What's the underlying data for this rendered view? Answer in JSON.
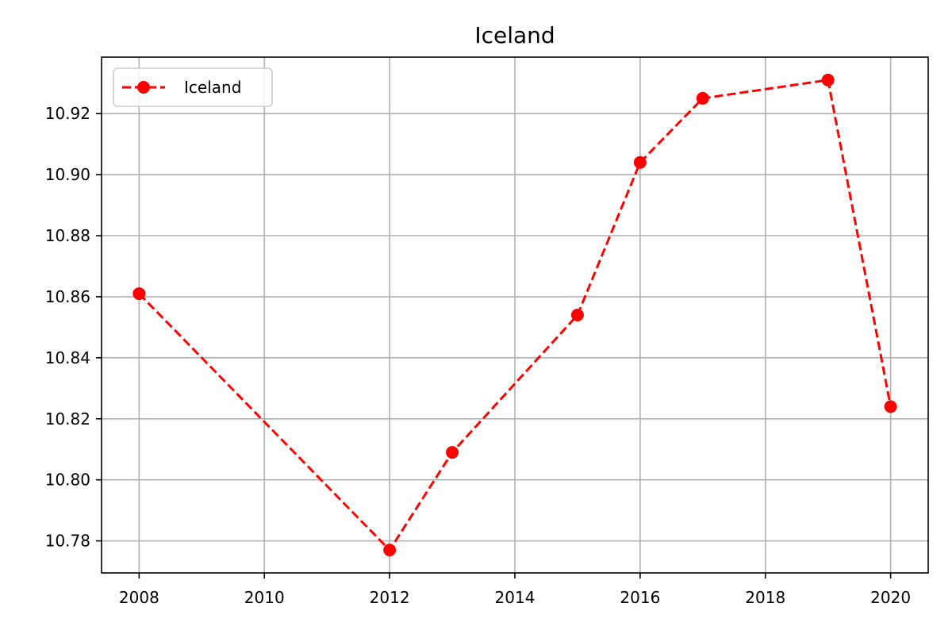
{
  "chart_data": {
    "type": "line",
    "title": "Iceland",
    "xlabel": "",
    "ylabel": "",
    "x": [
      2008,
      2012,
      2013,
      2015,
      2016,
      2017,
      2019,
      2020
    ],
    "series": [
      {
        "name": "Iceland",
        "values": [
          10.861,
          10.777,
          10.809,
          10.854,
          10.904,
          10.925,
          10.931,
          10.824
        ],
        "color": "#ff0000",
        "line_style": "dashed",
        "marker": "circle"
      }
    ],
    "xlim": [
      2007.4,
      2020.6
    ],
    "ylim": [
      10.7695,
      10.9385
    ],
    "x_ticks": [
      2008,
      2010,
      2012,
      2014,
      2016,
      2018,
      2020
    ],
    "y_ticks": [
      10.78,
      10.8,
      10.82,
      10.84,
      10.86,
      10.88,
      10.9,
      10.92
    ],
    "y_tick_labels": [
      "10.78",
      "10.80",
      "10.82",
      "10.84",
      "10.86",
      "10.88",
      "10.90",
      "10.92"
    ],
    "grid": true,
    "legend_position": "top-left"
  }
}
